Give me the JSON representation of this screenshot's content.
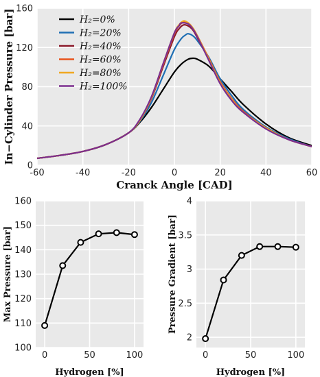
{
  "chart_data": [
    {
      "type": "line",
      "xlabel": "Cranck Angle [CAD]",
      "ylabel": "In−Cylinder Pressure [bar]",
      "xlim": [
        -60,
        60
      ],
      "ylim": [
        0,
        160
      ],
      "xticks": [
        "-60",
        "-40",
        "-20",
        "0",
        "20",
        "40",
        "60"
      ],
      "yticks": [
        "0",
        "40",
        "80",
        "120",
        "160"
      ],
      "grid": true,
      "legend_position": "top-left",
      "series": [
        {
          "name": "H₂=0%",
          "color": "#000000",
          "x": [
            -60,
            -50,
            -40,
            -30,
            -20,
            -15,
            -10,
            -5,
            0,
            3,
            6,
            8,
            10,
            15,
            20,
            25,
            30,
            40,
            50,
            60
          ],
          "y": [
            7,
            10,
            14,
            21,
            33,
            44,
            59,
            77,
            95,
            103,
            108,
            109,
            108,
            101,
            88,
            75,
            62,
            42,
            28,
            20
          ]
        },
        {
          "name": "H₂=20%",
          "color": "#1f6fb4",
          "x": [
            -60,
            -50,
            -40,
            -30,
            -20,
            -15,
            -10,
            -5,
            0,
            3,
            5,
            6,
            8,
            10,
            15,
            20,
            25,
            30,
            40,
            50,
            60
          ],
          "y": [
            7,
            10,
            14,
            21,
            33,
            45,
            64,
            91,
            118,
            129,
            133,
            134,
            132,
            127,
            110,
            88,
            71,
            57,
            39,
            27,
            19
          ]
        },
        {
          "name": "H₂=40%",
          "color": "#8b1a2b",
          "x": [
            -60,
            -50,
            -40,
            -30,
            -20,
            -15,
            -10,
            -5,
            0,
            2,
            4,
            6,
            8,
            10,
            15,
            20,
            25,
            30,
            40,
            50,
            60
          ],
          "y": [
            7,
            10,
            14,
            21,
            33,
            46,
            68,
            100,
            131,
            139,
            143,
            142,
            138,
            130,
            108,
            85,
            68,
            55,
            38,
            26,
            19
          ]
        },
        {
          "name": "H₂=60%",
          "color": "#e8541c",
          "x": [
            -60,
            -50,
            -40,
            -30,
            -20,
            -15,
            -10,
            -5,
            0,
            2,
            4,
            6,
            8,
            10,
            15,
            20,
            25,
            30,
            40,
            50,
            60
          ],
          "y": [
            7,
            10,
            14,
            21,
            33,
            46,
            69,
            102,
            134,
            142,
            146,
            145,
            140,
            132,
            109,
            85,
            68,
            55,
            38,
            26,
            19
          ]
        },
        {
          "name": "H₂=80%",
          "color": "#f0a821",
          "x": [
            -60,
            -50,
            -40,
            -30,
            -20,
            -15,
            -10,
            -5,
            0,
            2,
            4,
            6,
            8,
            10,
            15,
            20,
            25,
            30,
            40,
            50,
            60
          ],
          "y": [
            7,
            10,
            14,
            21,
            33,
            46,
            69,
            103,
            135,
            143,
            147,
            145,
            140,
            132,
            108,
            84,
            67,
            54,
            38,
            26,
            19
          ]
        },
        {
          "name": "H₂=100%",
          "color": "#7b2e8e",
          "x": [
            -60,
            -50,
            -40,
            -30,
            -20,
            -15,
            -10,
            -5,
            0,
            2,
            3,
            6,
            8,
            10,
            15,
            20,
            25,
            30,
            40,
            50,
            60
          ],
          "y": [
            7,
            10,
            14,
            21,
            33,
            47,
            70,
            103,
            135,
            142,
            145,
            144,
            139,
            131,
            107,
            83,
            66,
            54,
            37,
            26,
            19
          ]
        }
      ]
    },
    {
      "type": "line",
      "xlabel": "Hydrogen [%]",
      "ylabel": "Max Pressure [bar]",
      "xlim": [
        -10,
        110
      ],
      "ylim": [
        100,
        160
      ],
      "xticks": [
        "0",
        "50",
        "100"
      ],
      "yticks": [
        "100",
        "110",
        "120",
        "130",
        "140",
        "150",
        "160"
      ],
      "grid": true,
      "series": [
        {
          "x": [
            0,
            20,
            40,
            60,
            80,
            100
          ],
          "y": [
            109,
            133.5,
            143,
            146.5,
            147,
            146.2
          ],
          "color": "#000000"
        }
      ]
    },
    {
      "type": "line",
      "xlabel": "Hydrogen [%]",
      "ylabel": "Pressure Gradient [bar]",
      "xlim": [
        -10,
        110
      ],
      "ylim": [
        1.85,
        4
      ],
      "xticks": [
        "0",
        "50",
        "100"
      ],
      "yticks": [
        "2",
        "2.5",
        "3",
        "3.5",
        "4"
      ],
      "grid": true,
      "series": [
        {
          "x": [
            0,
            20,
            40,
            60,
            80,
            100
          ],
          "y": [
            1.98,
            2.84,
            3.2,
            3.33,
            3.33,
            3.32
          ],
          "color": "#000000"
        }
      ]
    }
  ]
}
